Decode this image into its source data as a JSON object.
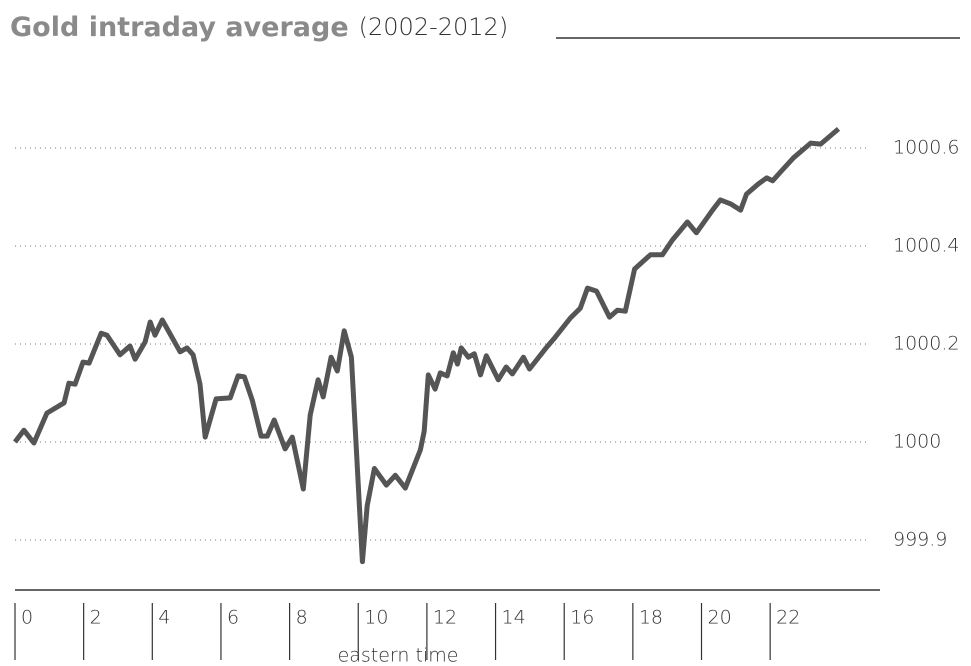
{
  "chart_data": {
    "type": "line",
    "title": "Gold intraday average",
    "subtitle": "(2002-2012)",
    "xlabel": "eastern time",
    "x": [
      0,
      0.26,
      0.55,
      0.93,
      1.43,
      1.57,
      1.75,
      1.98,
      2.16,
      2.51,
      2.68,
      3.06,
      3.35,
      3.5,
      3.79,
      3.94,
      4.08,
      4.29,
      4.81,
      5.01,
      5.19,
      5.39,
      5.54,
      5.86,
      6.27,
      6.5,
      6.68,
      6.91,
      7.17,
      7.35,
      7.55,
      7.87,
      8.08,
      8.4,
      8.6,
      8.83,
      8.98,
      9.21,
      9.39,
      9.59,
      9.8,
      10.12,
      10.26,
      10.47,
      10.82,
      11.08,
      11.37,
      11.81,
      11.92,
      12.04,
      12.24,
      12.39,
      12.59,
      12.77,
      12.89,
      13,
      13.21,
      13.38,
      13.56,
      13.73,
      14.08,
      14.31,
      14.49,
      14.81,
      14.99,
      15.45,
      15.74,
      16.18,
      16.47,
      16.68,
      16.94,
      17.32,
      17.55,
      17.78,
      18.05,
      18.51,
      18.86,
      19.15,
      19.59,
      19.85,
      20.32,
      20.55,
      20.85,
      21.14,
      21.31,
      21.66,
      21.9,
      22.07,
      22.3,
      22.68,
      23.18,
      23.47,
      23.99
    ],
    "series": [
      {
        "name": "Gold",
        "color": "#555555",
        "values": [
          1000,
          1000.024,
          999.999,
          1000.059,
          1000.08,
          1000.12,
          1000.118,
          1000.163,
          1000.161,
          1000.222,
          1000.218,
          1000.178,
          1000.196,
          1000.169,
          1000.204,
          1000.245,
          1000.218,
          1000.249,
          1000.184,
          1000.192,
          1000.178,
          1000.118,
          1000.01,
          1000.088,
          1000.09,
          1000.135,
          1000.133,
          1000.086,
          1000.012,
          1000.012,
          1000.045,
          999.993,
          1000.01,
          999.952,
          1000.055,
          1000.127,
          1000.092,
          1000.173,
          1000.145,
          1000.227,
          1000.173,
          999.878,
          999.935,
          999.973,
          999.956,
          999.966,
          999.953,
          999.992,
          1000.022,
          1000.137,
          1000.108,
          1000.141,
          1000.135,
          1000.182,
          1000.159,
          1000.192,
          1000.173,
          1000.18,
          1000.137,
          1000.176,
          1000.127,
          1000.153,
          1000.139,
          1000.173,
          1000.149,
          1000.19,
          1000.214,
          1000.253,
          1000.273,
          1000.314,
          1000.308,
          1000.255,
          1000.269,
          1000.267,
          1000.353,
          1000.382,
          1000.382,
          1000.412,
          1000.449,
          1000.427,
          1000.473,
          1000.494,
          1000.486,
          1000.473,
          1000.506,
          1000.527,
          1000.539,
          1000.533,
          1000.551,
          1000.58,
          1000.61,
          1000.608,
          1000.639
        ]
      }
    ],
    "xlim": [
      0,
      25.2
    ],
    "xticks": [
      0,
      2,
      4,
      6,
      8,
      10,
      12,
      14,
      16,
      18,
      20,
      22
    ],
    "ylim": [
      999.85,
      1000.68
    ],
    "yticks": [
      999.9,
      1000,
      1000.2,
      1000.4,
      1000.6
    ],
    "grid": true
  }
}
